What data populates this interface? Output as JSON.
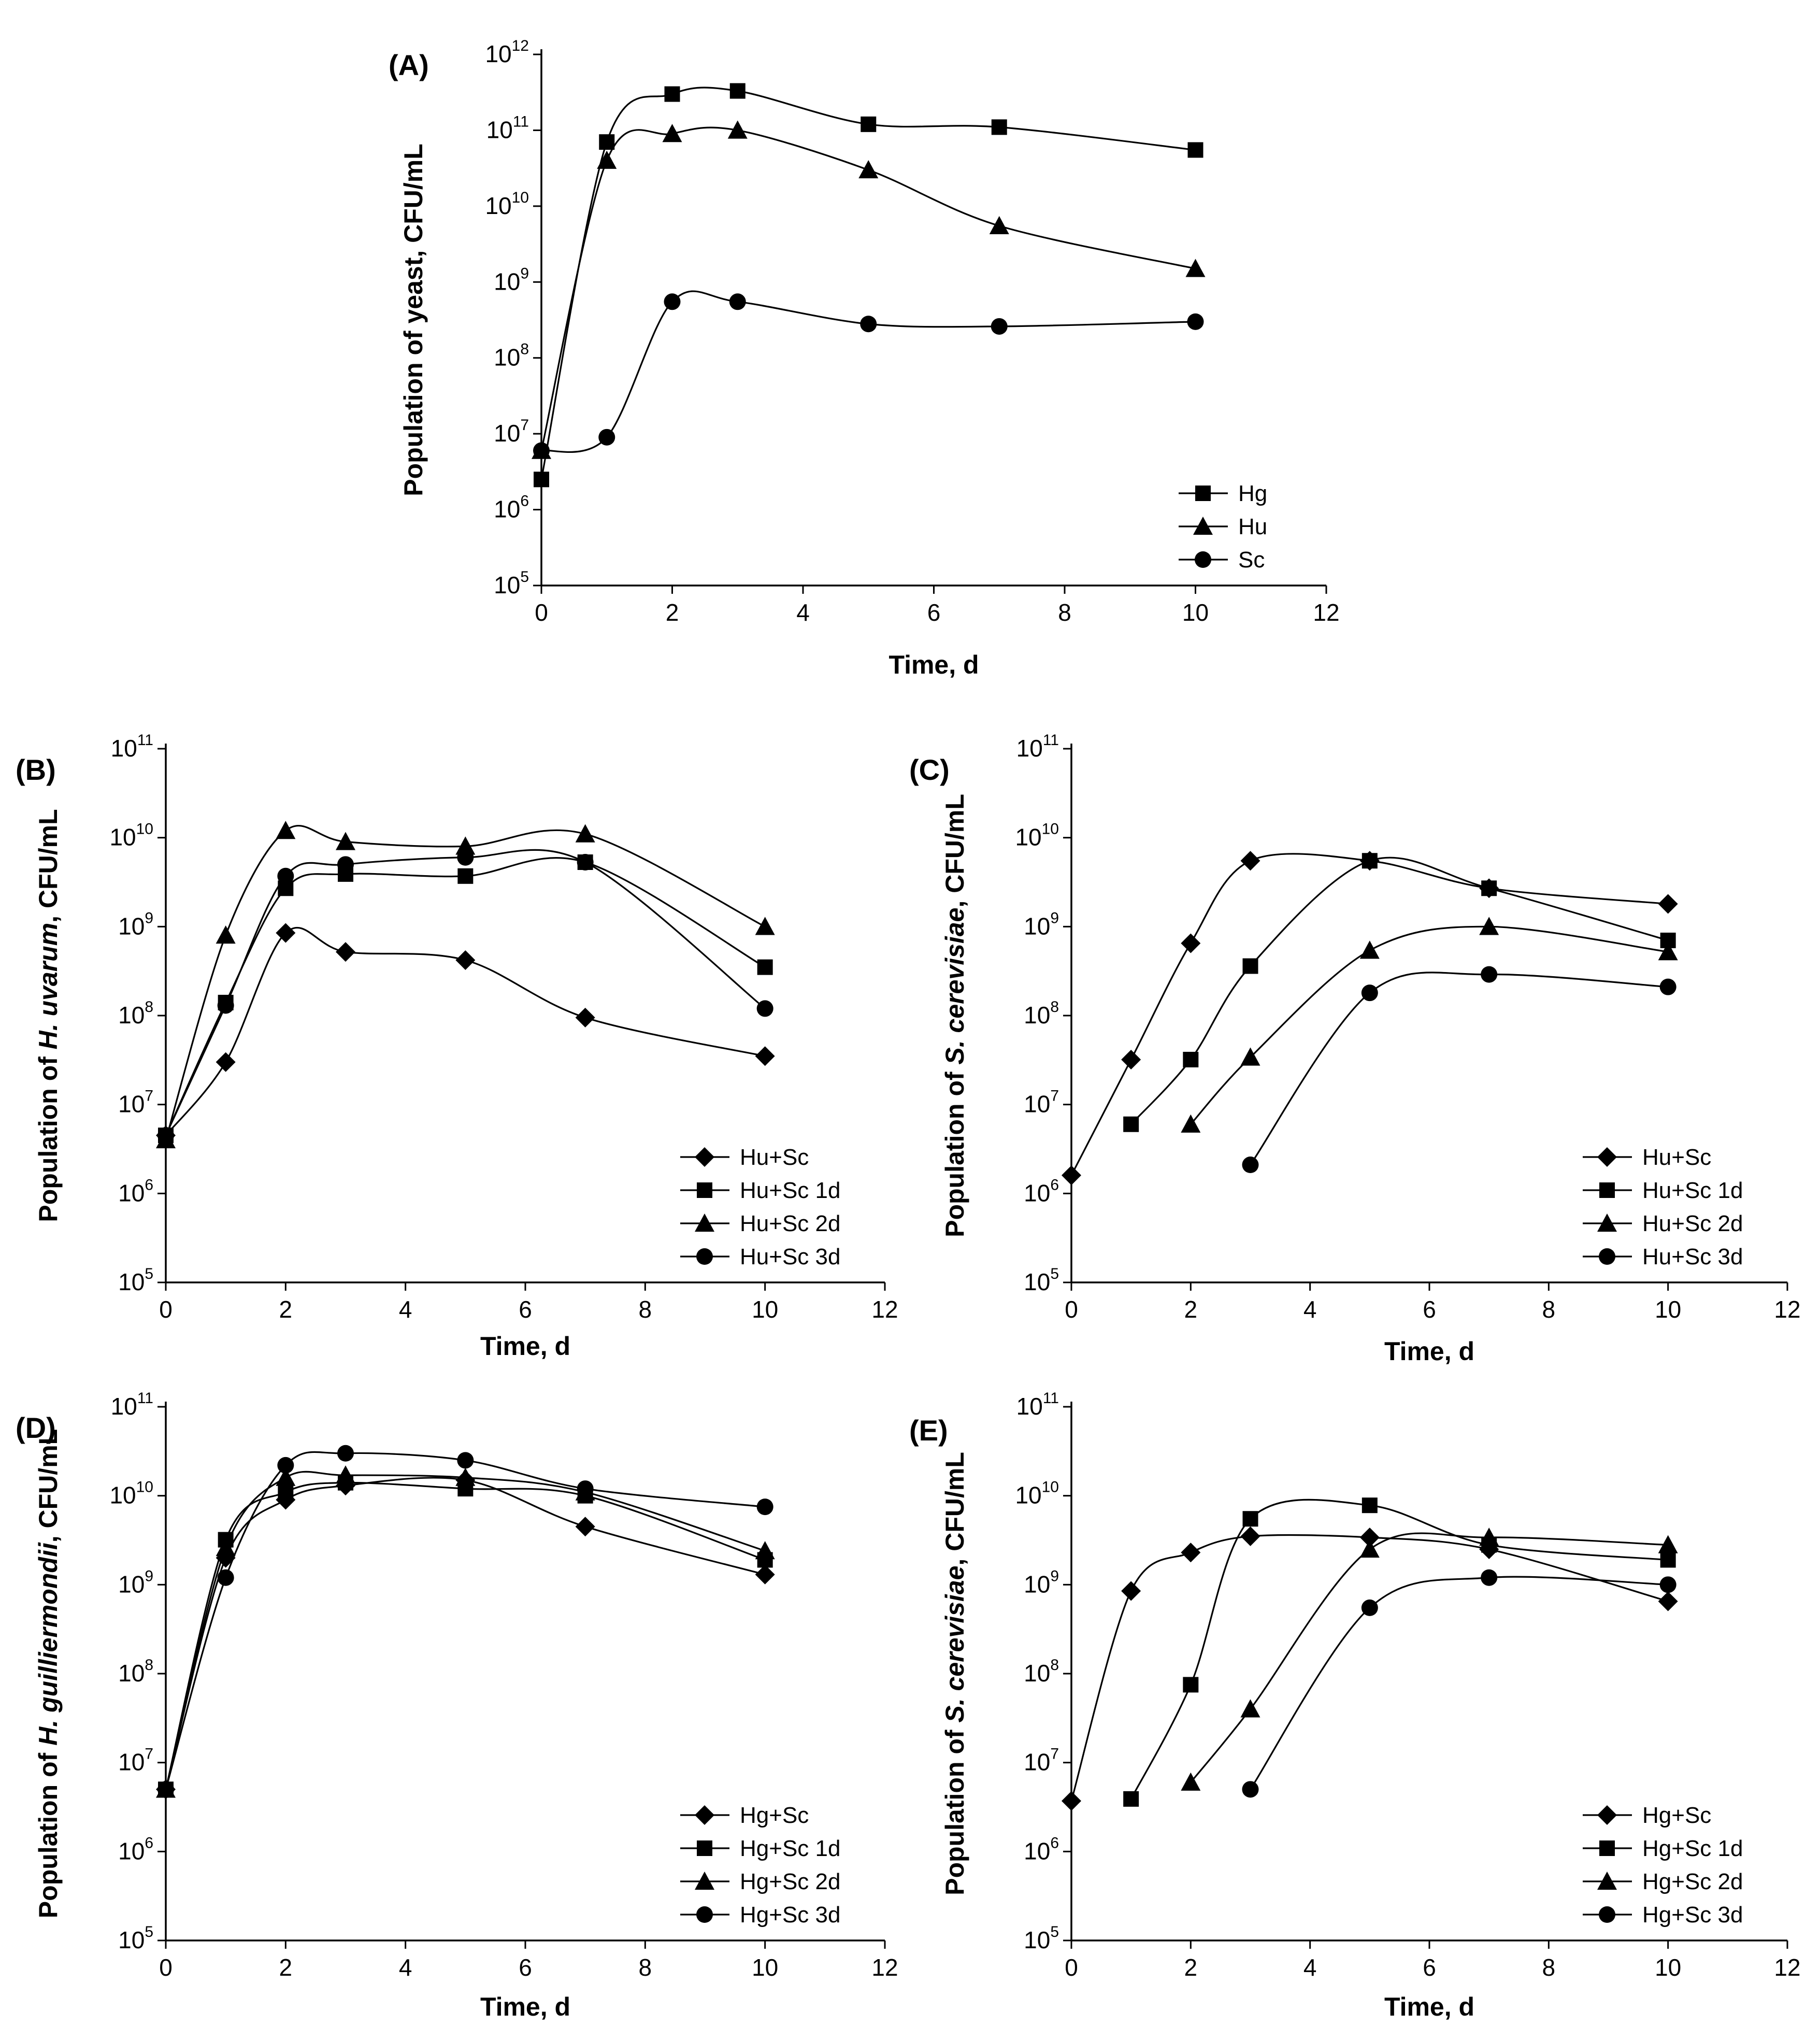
{
  "chart_data": [
    {
      "panel": "(A)",
      "type": "line",
      "yscale": "log",
      "xlim": [
        0,
        12
      ],
      "ylim_exponents": [
        5,
        12
      ],
      "xticks": [
        "0",
        "2",
        "4",
        "6",
        "8",
        "10",
        "12"
      ],
      "yticks": [
        "10^5",
        "10^6",
        "10^7",
        "10^8",
        "10^9",
        "10^10",
        "10^11",
        "10^12"
      ],
      "xlabel": "Time, d",
      "ylabel": "Population of yeast, CFU/mL",
      "legend": "lower-right",
      "series": [
        {
          "name": "Hg",
          "marker": "square",
          "x": [
            0,
            1,
            2,
            3,
            5,
            7,
            10
          ],
          "y": [
            2500000,
            70000000000,
            300000000000,
            330000000000,
            120000000000,
            110000000000,
            55000000000
          ]
        },
        {
          "name": "Hu",
          "marker": "triangle",
          "x": [
            0,
            1,
            2,
            3,
            5,
            7,
            10
          ],
          "y": [
            6000000,
            40000000000,
            90000000000,
            100000000000,
            30000000000,
            5500000000,
            1500000000
          ]
        },
        {
          "name": "Sc",
          "marker": "circle",
          "x": [
            0,
            1,
            2,
            3,
            5,
            7,
            10
          ],
          "y": [
            6000000,
            9000000,
            550000000,
            550000000,
            280000000,
            260000000,
            300000000
          ]
        }
      ]
    },
    {
      "panel": "(B)",
      "type": "line",
      "yscale": "log",
      "xlim": [
        0,
        12
      ],
      "ylim_exponents": [
        5,
        11
      ],
      "xticks": [
        "0",
        "2",
        "4",
        "6",
        "8",
        "10",
        "12"
      ],
      "yticks": [
        "10^5",
        "10^6",
        "10^7",
        "10^8",
        "10^9",
        "10^10",
        "10^11"
      ],
      "xlabel": "Time, d",
      "ylabel_prefix": "Population of ",
      "ylabel_italic": "H. uvarum",
      "ylabel_suffix": ", CFU/mL",
      "legend": "lower-right",
      "series": [
        {
          "name": "Hu+Sc",
          "marker": "diamond",
          "x": [
            0,
            1,
            2,
            3,
            5,
            7,
            10
          ],
          "y": [
            4500000,
            30000000,
            850000000,
            520000000,
            420000000,
            95000000,
            35000000
          ]
        },
        {
          "name": "Hu+Sc 1d",
          "marker": "square",
          "x": [
            0,
            1,
            2,
            3,
            5,
            7,
            10
          ],
          "y": [
            4500000,
            140000000,
            2700000000,
            3900000000,
            3700000000,
            5300000000,
            350000000
          ]
        },
        {
          "name": "Hu+Sc 2d",
          "marker": "triangle",
          "x": [
            0,
            1,
            2,
            3,
            5,
            7,
            10
          ],
          "y": [
            4000000,
            800000000,
            12000000000,
            9000000000,
            8000000000,
            11000000000,
            1000000000
          ]
        },
        {
          "name": "Hu+Sc 3d",
          "marker": "circle",
          "x": [
            0,
            1,
            2,
            3,
            5,
            7,
            10
          ],
          "y": [
            4500000,
            130000000,
            3700000000,
            5000000000,
            6000000000,
            5300000000,
            120000000
          ]
        }
      ]
    },
    {
      "panel": "(C)",
      "type": "line",
      "yscale": "log",
      "xlim": [
        0,
        12
      ],
      "ylim_exponents": [
        5,
        11
      ],
      "xticks": [
        "0",
        "2",
        "4",
        "6",
        "8",
        "10",
        "12"
      ],
      "yticks": [
        "10^5",
        "10^6",
        "10^7",
        "10^8",
        "10^9",
        "10^10",
        "10^11"
      ],
      "xlabel": "Time, d",
      "ylabel_prefix": "Population of ",
      "ylabel_italic": "S. cerevisiae",
      "ylabel_suffix": ", CFU/mL",
      "legend": "lower-right",
      "series": [
        {
          "name": "Hu+Sc",
          "marker": "diamond",
          "x": [
            0,
            1,
            2,
            3,
            5,
            7,
            10
          ],
          "y": [
            1600000,
            32000000,
            650000000,
            5500000000,
            5500000000,
            2700000000,
            1800000000
          ]
        },
        {
          "name": "Hu+Sc 1d",
          "marker": "square",
          "x": [
            1,
            2,
            3,
            5,
            7,
            10
          ],
          "y": [
            6000000,
            32000000,
            360000000,
            5500000000,
            2700000000,
            700000000
          ]
        },
        {
          "name": "Hu+Sc 2d",
          "marker": "triangle",
          "x": [
            2,
            3,
            5,
            7,
            10
          ],
          "y": [
            6000000,
            34000000,
            540000000,
            1000000000,
            520000000
          ]
        },
        {
          "name": "Hu+Sc 3d",
          "marker": "circle",
          "x": [
            3,
            5,
            7,
            10
          ],
          "y": [
            2100000,
            180000000,
            290000000,
            210000000
          ]
        }
      ]
    },
    {
      "panel": "(D)",
      "type": "line",
      "yscale": "log",
      "xlim": [
        0,
        12
      ],
      "ylim_exponents": [
        5,
        11
      ],
      "xticks": [
        "0",
        "2",
        "4",
        "6",
        "8",
        "10",
        "12"
      ],
      "yticks": [
        "10^5",
        "10^6",
        "10^7",
        "10^8",
        "10^9",
        "10^10",
        "10^11"
      ],
      "xlabel": "Time, d",
      "ylabel_prefix": "Population of ",
      "ylabel_italic": "H. guilliermondii",
      "ylabel_suffix": ", CFU/mL",
      "legend": "lower-right",
      "series": [
        {
          "name": "Hg+Sc",
          "marker": "diamond",
          "x": [
            0,
            1,
            2,
            3,
            5,
            7,
            10
          ],
          "y": [
            5000000,
            2000000000,
            9000000000,
            13000000000,
            15000000000,
            4500000000,
            1300000000
          ]
        },
        {
          "name": "Hg+Sc 1d",
          "marker": "square",
          "x": [
            0,
            1,
            2,
            3,
            5,
            7,
            10
          ],
          "y": [
            5000000,
            3200000000,
            11000000000,
            14000000000,
            12000000000,
            10000000000,
            1900000000
          ]
        },
        {
          "name": "Hg+Sc 2d",
          "marker": "triangle",
          "x": [
            0,
            1,
            2,
            3,
            5,
            7,
            10
          ],
          "y": [
            5000000,
            2600000000,
            16000000000,
            17000000000,
            16000000000,
            11000000000,
            2400000000
          ]
        },
        {
          "name": "Hg+Sc 3d",
          "marker": "circle",
          "x": [
            0,
            1,
            2,
            3,
            5,
            7,
            10
          ],
          "y": [
            5000000,
            1200000000,
            22000000000,
            30000000000,
            25000000000,
            12000000000,
            7500000000
          ]
        }
      ]
    },
    {
      "panel": "(E)",
      "type": "line",
      "yscale": "log",
      "xlim": [
        0,
        12
      ],
      "ylim_exponents": [
        5,
        11
      ],
      "xticks": [
        "0",
        "2",
        "4",
        "6",
        "8",
        "10",
        "12"
      ],
      "yticks": [
        "10^5",
        "10^6",
        "10^7",
        "10^8",
        "10^9",
        "10^10",
        "10^11"
      ],
      "xlabel": "Time, d",
      "ylabel_prefix": "Population of ",
      "ylabel_italic": "S. cerevisiae",
      "ylabel_suffix": ", CFU/mL",
      "legend": "lower-right",
      "series": [
        {
          "name": "Hg+Sc",
          "marker": "diamond",
          "x": [
            0,
            1,
            2,
            3,
            5,
            7,
            10
          ],
          "y": [
            3700000,
            850000000,
            2300000000,
            3500000000,
            3400000000,
            2500000000,
            650000000
          ]
        },
        {
          "name": "Hg+Sc 1d",
          "marker": "square",
          "x": [
            1,
            2,
            3,
            5,
            7,
            10
          ],
          "y": [
            3900000,
            75000000,
            5500000000,
            7800000000,
            2800000000,
            1900000000
          ]
        },
        {
          "name": "Hg+Sc 2d",
          "marker": "triangle",
          "x": [
            2,
            3,
            5,
            7,
            10
          ],
          "y": [
            6000000,
            40000000,
            2500000000,
            3400000000,
            2800000000
          ]
        },
        {
          "name": "Hg+Sc 3d",
          "marker": "circle",
          "x": [
            3,
            5,
            7,
            10
          ],
          "y": [
            5000000,
            550000000,
            1200000000,
            1000000000
          ]
        }
      ]
    }
  ]
}
